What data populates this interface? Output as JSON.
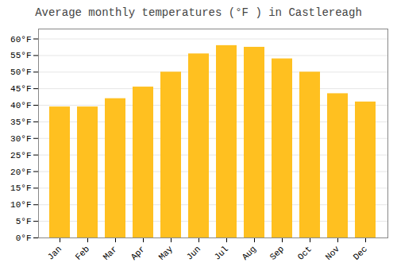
{
  "chart_data": {
    "type": "bar",
    "title": "Average monthly temperatures (°F ) in Castlereagh",
    "categories": [
      "Jan",
      "Feb",
      "Mar",
      "Apr",
      "May",
      "Jun",
      "Jul",
      "Aug",
      "Sep",
      "Oct",
      "Nov",
      "Dec"
    ],
    "values": [
      39.5,
      39.5,
      42.0,
      45.5,
      50.0,
      55.5,
      58.0,
      57.5,
      54.0,
      50.0,
      43.5,
      41.0
    ],
    "color": "#FFC020",
    "ylim": [
      0,
      63
    ],
    "yticks": [
      {
        "value": 0,
        "label": "0°F"
      },
      {
        "value": 5,
        "label": "5°F"
      },
      {
        "value": 10,
        "label": "10°F"
      },
      {
        "value": 15,
        "label": "15°F"
      },
      {
        "value": 20,
        "label": "20°F"
      },
      {
        "value": 25,
        "label": "25°F"
      },
      {
        "value": 30,
        "label": "30°F"
      },
      {
        "value": 35,
        "label": "35°F"
      },
      {
        "value": 40,
        "label": "40°F"
      },
      {
        "value": 45,
        "label": "45°F"
      },
      {
        "value": 50,
        "label": "50°F"
      },
      {
        "value": 55,
        "label": "55°F"
      },
      {
        "value": 60,
        "label": "60°F"
      }
    ],
    "grid": true
  }
}
